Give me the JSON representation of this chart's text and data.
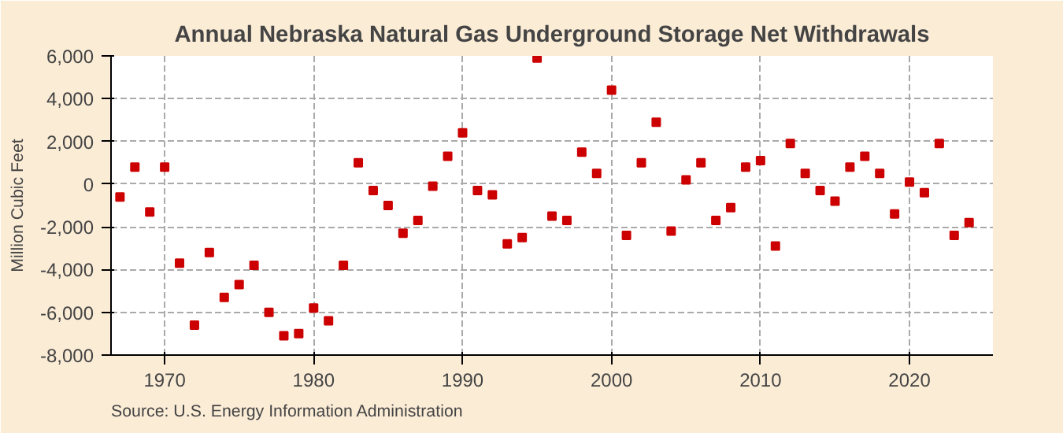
{
  "chart_data": {
    "type": "scatter",
    "title": "Annual Nebraska Natural Gas Underground Storage Net Withdrawals",
    "ylabel": "Million Cubic Feet",
    "annotations": [
      "Source: U.S. Energy Information Administration"
    ],
    "x": [
      1967,
      1968,
      1969,
      1970,
      1971,
      1972,
      1973,
      1974,
      1975,
      1976,
      1977,
      1978,
      1979,
      1980,
      1981,
      1982,
      1983,
      1984,
      1985,
      1986,
      1987,
      1988,
      1989,
      1990,
      1991,
      1992,
      1993,
      1994,
      1995,
      1996,
      1997,
      1998,
      1999,
      2000,
      2001,
      2002,
      2003,
      2004,
      2005,
      2006,
      2007,
      2008,
      2009,
      2010,
      2011,
      2012,
      2013,
      2014,
      2015,
      2016,
      2017,
      2018,
      2019,
      2020,
      2021,
      2022,
      2023,
      2024
    ],
    "series": [
      {
        "color": "#cc0000",
        "values": [
          -600,
          800,
          -1300,
          800,
          -3700,
          -6600,
          -3200,
          -5300,
          -4700,
          -3800,
          -6000,
          -7100,
          -7000,
          -5800,
          -6400,
          -3800,
          1000,
          -300,
          -1000,
          -2300,
          -1700,
          -100,
          1300,
          2400,
          -300,
          -500,
          -2800,
          -2500,
          5900,
          -1500,
          -1700,
          1500,
          500,
          4400,
          -2400,
          1000,
          2900,
          -2200,
          200,
          1000,
          -1700,
          -1100,
          800,
          1100,
          -2900,
          1900,
          500,
          -300,
          -800,
          800,
          1300,
          500,
          -1400,
          100,
          -400,
          1900,
          -2400,
          -1800
        ]
      }
    ],
    "xlim": [
      1966.4,
      2025.6
    ],
    "xticks": [
      1970,
      1980,
      1990,
      2000,
      2010,
      2020
    ],
    "ylim": [
      -8000,
      6000
    ],
    "yticks": [
      {
        "value": -8000,
        "label": "-8,000"
      },
      {
        "value": -6000,
        "label": "-6,000"
      },
      {
        "value": -4000,
        "label": "-4,000"
      },
      {
        "value": -2000,
        "label": "-2,000"
      },
      0,
      {
        "value": 2000,
        "label": "2,000"
      },
      {
        "value": 4000,
        "label": "4,000"
      },
      {
        "value": 6000,
        "label": "6,000"
      }
    ],
    "grid": true,
    "marker": "square"
  }
}
